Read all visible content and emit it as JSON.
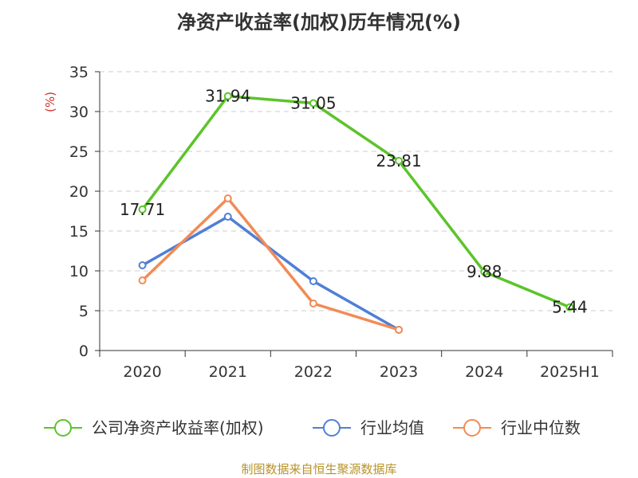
{
  "title": "净资产收益率(加权)历年情况(%)",
  "source": "制图数据来自恒生聚源数据库",
  "chart_data": {
    "type": "line",
    "title": "净资产收益率(加权)历年情况(%)",
    "ylabel": "(%)",
    "xlabel": "",
    "ylim": [
      0,
      35
    ],
    "yticks": [
      0,
      5,
      10,
      15,
      20,
      25,
      30,
      35
    ],
    "categories": [
      "2020",
      "2021",
      "2022",
      "2023",
      "2024",
      "2025H1"
    ],
    "grid": true,
    "legend_position": "bottom",
    "series": [
      {
        "name": "公司净资产收益率(加权)",
        "color": "#5cc42a",
        "values": [
          17.71,
          31.94,
          31.05,
          23.81,
          9.88,
          5.44
        ],
        "labels": [
          "17.71",
          "31.94",
          "31.05",
          "23.81",
          "9.88",
          "5.44"
        ]
      },
      {
        "name": "行业均值",
        "color": "#4f7fd6",
        "values": [
          10.7,
          16.8,
          8.7,
          2.6,
          null,
          null
        ]
      },
      {
        "name": "行业中位数",
        "color": "#f28b55",
        "values": [
          8.8,
          19.1,
          5.9,
          2.6,
          null,
          null
        ]
      }
    ]
  }
}
